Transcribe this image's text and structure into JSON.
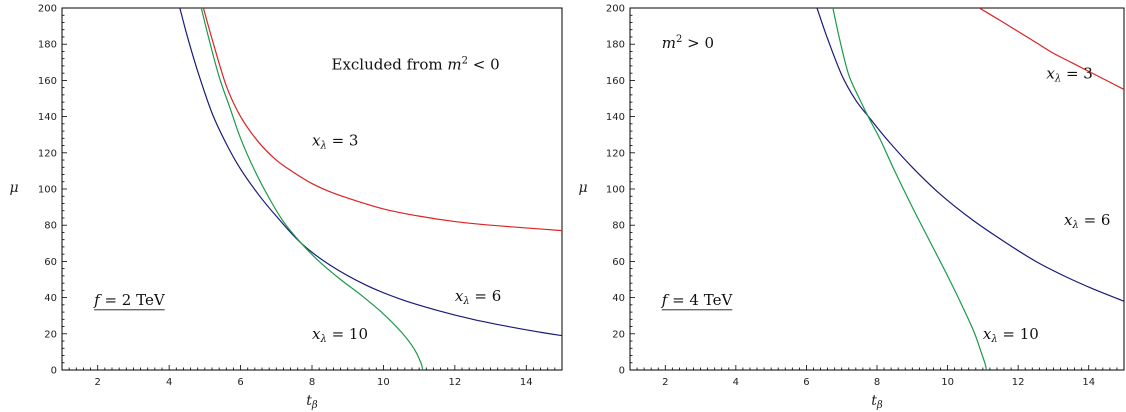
{
  "chart_data": [
    {
      "type": "line",
      "title": "",
      "xlabel": "t",
      "xlabel_sub": "β",
      "ylabel": "μ",
      "xlim": [
        1,
        15
      ],
      "ylim": [
        0,
        200
      ],
      "xticks": [
        2,
        4,
        6,
        8,
        10,
        12,
        14
      ],
      "yticks": [
        0,
        20,
        40,
        60,
        80,
        100,
        120,
        140,
        160,
        180,
        200
      ],
      "grid": false,
      "series": [
        {
          "label_main": "x",
          "label_sub": "λ",
          "label_rest": " = 3",
          "color": "#dd2222",
          "x": [
            4.96,
            5.2,
            5.6,
            6.0,
            6.5,
            7.0,
            7.5,
            8.0,
            8.5,
            9.0,
            10.0,
            11.0,
            12.0,
            13.0,
            14.0,
            15.0
          ],
          "y": [
            200,
            183,
            157,
            140,
            126,
            116,
            109,
            103,
            98.5,
            95,
            89,
            85,
            82,
            80,
            78.5,
            77
          ]
        },
        {
          "label_main": "x",
          "label_sub": "λ",
          "label_rest": " = 6",
          "color": "#1a1a7a",
          "x": [
            4.3,
            4.5,
            4.8,
            5.2,
            5.6,
            6.0,
            6.5,
            7.0,
            7.7,
            8.5,
            9.5,
            10.5,
            11.5,
            12.5,
            13.5,
            14.5,
            15.0
          ],
          "y": [
            200,
            185,
            165,
            142,
            125,
            111,
            97,
            85,
            70,
            58,
            47,
            39,
            33,
            28,
            24,
            20.5,
            19
          ]
        },
        {
          "label_main": "x",
          "label_sub": "λ",
          "label_rest": " = 10",
          "color": "#1a9a4a",
          "x": [
            4.9,
            5.1,
            5.4,
            5.7,
            6.0,
            6.4,
            6.8,
            7.2,
            7.7,
            8.2,
            8.8,
            9.4,
            10.0,
            10.5,
            10.85,
            11.05,
            11.1
          ],
          "y": [
            200,
            184,
            162,
            145,
            128,
            110,
            95,
            82,
            70,
            60,
            50,
            41,
            31,
            21,
            12,
            4,
            0
          ]
        }
      ],
      "annotations": [
        {
          "kind": "region",
          "text": "Excluded from ",
          "math_main": "m",
          "math_sup": "2",
          "math_rest": " < 0",
          "at": [
            10.9,
            166
          ]
        },
        {
          "kind": "label",
          "text": "f = 2 TeV",
          "at": [
            1.9,
            36
          ]
        }
      ],
      "series_label_positions": [
        [
          8.0,
          124
        ],
        [
          12.0,
          38
        ],
        [
          8.0,
          17
        ]
      ]
    },
    {
      "type": "line",
      "title": "",
      "xlabel": "t",
      "xlabel_sub": "β",
      "ylabel": "μ",
      "xlim": [
        1,
        15
      ],
      "ylim": [
        0,
        200
      ],
      "xticks": [
        2,
        4,
        6,
        8,
        10,
        12,
        14
      ],
      "yticks": [
        0,
        20,
        40,
        60,
        80,
        100,
        120,
        140,
        160,
        180,
        200
      ],
      "grid": false,
      "series": [
        {
          "label_main": "x",
          "label_sub": "λ",
          "label_rest": " = 3",
          "color": "#dd2222",
          "x": [
            10.9,
            11.5,
            12.0,
            12.5,
            13.0,
            13.5,
            14.0,
            14.5,
            15.0
          ],
          "y": [
            200,
            193,
            187,
            181,
            175,
            170,
            165,
            160,
            155
          ]
        },
        {
          "label_main": "x",
          "label_sub": "λ",
          "label_rest": " = 6",
          "color": "#1a1a7a",
          "x": [
            6.3,
            6.6,
            7.0,
            7.4,
            7.8,
            8.3,
            9.0,
            9.8,
            10.7,
            11.6,
            12.5,
            13.3,
            14.1,
            15.0
          ],
          "y": [
            200,
            183,
            163,
            149,
            139,
            127,
            112,
            97,
            83,
            71,
            60,
            52,
            45,
            38
          ]
        },
        {
          "label_main": "x",
          "label_sub": "λ",
          "label_rest": " = 10",
          "color": "#1a9a4a",
          "x": [
            6.75,
            6.95,
            7.2,
            7.5,
            7.75,
            8.1,
            8.5,
            9.0,
            9.5,
            10.0,
            10.4,
            10.75,
            10.95,
            11.07,
            11.1
          ],
          "y": [
            200,
            182,
            163,
            150,
            140,
            127,
            110,
            90,
            71,
            52,
            36,
            21,
            10,
            3,
            0
          ]
        }
      ],
      "annotations": [
        {
          "kind": "region",
          "text": "",
          "math_main": "m",
          "math_sup": "2",
          "math_rest": " > 0",
          "at": [
            1.9,
            178
          ]
        },
        {
          "kind": "label",
          "text": "f = 4 TeV",
          "at": [
            1.9,
            36
          ]
        }
      ],
      "series_label_positions": [
        [
          12.8,
          161
        ],
        [
          13.3,
          80
        ],
        [
          11.0,
          17
        ]
      ]
    }
  ]
}
